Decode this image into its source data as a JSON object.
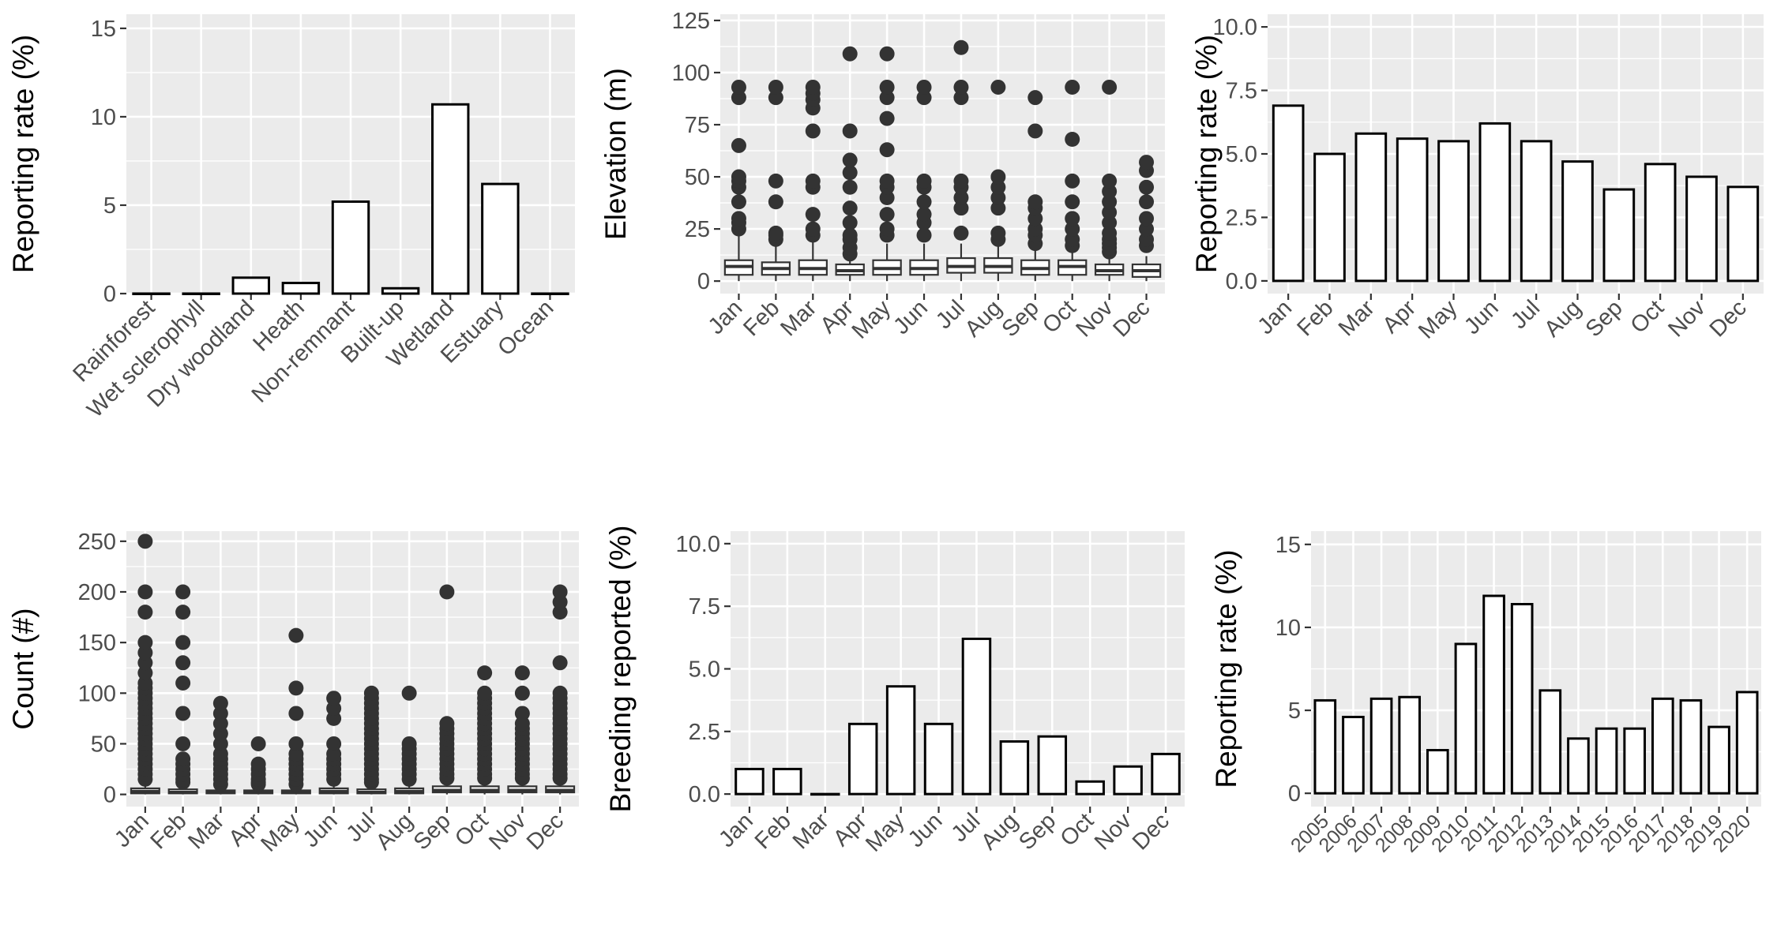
{
  "chart_data": [
    {
      "type": "bar",
      "ylabel": "Reporting rate (%)",
      "categories": [
        "Rainforest",
        "Wet sclerophyll",
        "Dry woodland",
        "Heath",
        "Non-remnant",
        "Built-up",
        "Wetland",
        "Estuary",
        "Ocean"
      ],
      "values": [
        0,
        0,
        0.9,
        0.6,
        5.2,
        0.3,
        10.7,
        6.2,
        0
      ],
      "ylim": [
        0,
        15.8
      ],
      "yticks": [
        "0",
        "5",
        "10",
        "15"
      ],
      "ytick_values": [
        0,
        5,
        10,
        15
      ],
      "grid": true
    },
    {
      "type": "box",
      "ylabel": "Elevation (m)",
      "categories": [
        "Jan",
        "Feb",
        "Mar",
        "Apr",
        "May",
        "Jun",
        "Jul",
        "Aug",
        "Sep",
        "Oct",
        "Nov",
        "Dec"
      ],
      "ylim": [
        -6,
        128
      ],
      "yticks": [
        "0",
        "25",
        "50",
        "75",
        "100",
        "125"
      ],
      "ytick_values": [
        0,
        25,
        50,
        75,
        100,
        125
      ],
      "grid": true,
      "boxes": [
        {
          "q1": 3,
          "median": 7,
          "q3": 10,
          "whisker_low": 0,
          "whisker_high": 22,
          "outliers": [
            25,
            28,
            30,
            38,
            45,
            48,
            50,
            65,
            88,
            93
          ]
        },
        {
          "q1": 3,
          "median": 6,
          "q3": 9,
          "whisker_low": 0,
          "whisker_high": 18,
          "outliers": [
            20,
            22,
            23,
            38,
            48,
            88,
            93
          ]
        },
        {
          "q1": 3,
          "median": 6,
          "q3": 10,
          "whisker_low": 0,
          "whisker_high": 20,
          "outliers": [
            22,
            25,
            32,
            45,
            48,
            72,
            83,
            87,
            90,
            93
          ]
        },
        {
          "q1": 3,
          "median": 5,
          "q3": 8,
          "whisker_low": 0,
          "whisker_high": 12,
          "outliers": [
            13,
            16,
            20,
            22,
            28,
            35,
            45,
            52,
            58,
            72,
            109
          ]
        },
        {
          "q1": 3,
          "median": 6,
          "q3": 10,
          "whisker_low": 0,
          "whisker_high": 18,
          "outliers": [
            22,
            25,
            32,
            40,
            45,
            48,
            63,
            78,
            88,
            93,
            109
          ]
        },
        {
          "q1": 3,
          "median": 6,
          "q3": 10,
          "whisker_low": 0,
          "whisker_high": 18,
          "outliers": [
            22,
            28,
            32,
            38,
            45,
            48,
            88,
            93
          ]
        },
        {
          "q1": 4,
          "median": 7,
          "q3": 11,
          "whisker_low": 0,
          "whisker_high": 18,
          "outliers": [
            23,
            35,
            40,
            45,
            48,
            88,
            93,
            112
          ]
        },
        {
          "q1": 4,
          "median": 7,
          "q3": 11,
          "whisker_low": 0,
          "whisker_high": 18,
          "outliers": [
            20,
            23,
            35,
            40,
            45,
            50,
            93
          ]
        },
        {
          "q1": 3,
          "median": 6,
          "q3": 10,
          "whisker_low": 0,
          "whisker_high": 15,
          "outliers": [
            18,
            22,
            25,
            30,
            35,
            38,
            72,
            88
          ]
        },
        {
          "q1": 3,
          "median": 7,
          "q3": 10,
          "whisker_low": 0,
          "whisker_high": 15,
          "outliers": [
            17,
            20,
            25,
            30,
            38,
            48,
            68,
            93
          ]
        },
        {
          "q1": 3,
          "median": 5,
          "q3": 8,
          "whisker_low": 0,
          "whisker_high": 12,
          "outliers": [
            14,
            16,
            18,
            20,
            23,
            28,
            33,
            38,
            43,
            48,
            93
          ]
        },
        {
          "q1": 2,
          "median": 5,
          "q3": 8,
          "whisker_low": 0,
          "whisker_high": 12,
          "outliers": [
            17,
            20,
            25,
            30,
            38,
            45,
            53,
            57
          ]
        }
      ]
    },
    {
      "type": "bar",
      "ylabel": "Reporting rate (%)",
      "categories": [
        "Jan",
        "Feb",
        "Mar",
        "Apr",
        "May",
        "Jun",
        "Jul",
        "Aug",
        "Sep",
        "Oct",
        "Nov",
        "Dec"
      ],
      "values": [
        6.9,
        5.0,
        5.8,
        5.6,
        5.5,
        6.2,
        5.5,
        4.7,
        3.6,
        4.6,
        4.1,
        3.7
      ],
      "ylim": [
        -0.5,
        10.5
      ],
      "yticks": [
        "0.0",
        "2.5",
        "5.0",
        "7.5",
        "10.0"
      ],
      "ytick_values": [
        0,
        2.5,
        5,
        7.5,
        10
      ],
      "grid": true
    },
    {
      "type": "box",
      "ylabel": "Count (#)",
      "categories": [
        "Jan",
        "Feb",
        "Mar",
        "Apr",
        "May",
        "Jun",
        "Jul",
        "Aug",
        "Sep",
        "Oct",
        "Nov",
        "Dec"
      ],
      "ylim": [
        -12,
        260
      ],
      "yticks": [
        "0",
        "50",
        "100",
        "150",
        "200",
        "250"
      ],
      "ytick_values": [
        0,
        50,
        100,
        150,
        200,
        250
      ],
      "grid": true,
      "boxes": [
        {
          "q1": 1,
          "median": 3,
          "q3": 6,
          "whisker_low": 0,
          "whisker_high": 12,
          "outliers": [
            15,
            20,
            25,
            30,
            35,
            40,
            45,
            50,
            55,
            60,
            65,
            70,
            75,
            80,
            85,
            90,
            95,
            100,
            105,
            110,
            120,
            130,
            140,
            150,
            180,
            200,
            250
          ]
        },
        {
          "q1": 1,
          "median": 2,
          "q3": 5,
          "whisker_low": 0,
          "whisker_high": 10,
          "outliers": [
            12,
            15,
            20,
            25,
            30,
            35,
            50,
            80,
            110,
            130,
            150,
            180,
            200
          ]
        },
        {
          "q1": 1,
          "median": 2,
          "q3": 4,
          "whisker_low": 0,
          "whisker_high": 8,
          "outliers": [
            10,
            15,
            20,
            25,
            30,
            35,
            40,
            50,
            60,
            70,
            80,
            90
          ]
        },
        {
          "q1": 1,
          "median": 2,
          "q3": 4,
          "whisker_low": 0,
          "whisker_high": 8,
          "outliers": [
            10,
            12,
            15,
            20,
            25,
            30,
            50
          ]
        },
        {
          "q1": 1,
          "median": 2,
          "q3": 4,
          "whisker_low": 0,
          "whisker_high": 8,
          "outliers": [
            10,
            15,
            20,
            25,
            30,
            35,
            40,
            50,
            80,
            105,
            157
          ]
        },
        {
          "q1": 1,
          "median": 3,
          "q3": 6,
          "whisker_low": 0,
          "whisker_high": 12,
          "outliers": [
            15,
            20,
            25,
            30,
            35,
            40,
            50,
            75,
            85,
            95
          ]
        },
        {
          "q1": 1,
          "median": 2,
          "q3": 5,
          "whisker_low": 0,
          "whisker_high": 10,
          "outliers": [
            12,
            15,
            20,
            25,
            30,
            35,
            40,
            45,
            50,
            55,
            60,
            65,
            70,
            75,
            80,
            85,
            90,
            95,
            100
          ]
        },
        {
          "q1": 1,
          "median": 3,
          "q3": 6,
          "whisker_low": 0,
          "whisker_high": 12,
          "outliers": [
            15,
            20,
            25,
            30,
            35,
            40,
            45,
            50,
            100
          ]
        },
        {
          "q1": 2,
          "median": 4,
          "q3": 8,
          "whisker_low": 0,
          "whisker_high": 14,
          "outliers": [
            16,
            20,
            25,
            30,
            35,
            40,
            45,
            50,
            55,
            60,
            65,
            70,
            200
          ]
        },
        {
          "q1": 2,
          "median": 4,
          "q3": 8,
          "whisker_low": 0,
          "whisker_high": 14,
          "outliers": [
            16,
            20,
            25,
            30,
            35,
            40,
            45,
            50,
            55,
            60,
            65,
            70,
            75,
            80,
            85,
            90,
            95,
            100,
            120
          ]
        },
        {
          "q1": 2,
          "median": 4,
          "q3": 8,
          "whisker_low": 0,
          "whisker_high": 14,
          "outliers": [
            16,
            20,
            25,
            30,
            35,
            40,
            45,
            50,
            55,
            60,
            65,
            70,
            80,
            100,
            120
          ]
        },
        {
          "q1": 2,
          "median": 4,
          "q3": 8,
          "whisker_low": 0,
          "whisker_high": 14,
          "outliers": [
            16,
            20,
            25,
            30,
            35,
            40,
            45,
            50,
            55,
            60,
            65,
            70,
            75,
            80,
            85,
            90,
            95,
            100,
            130,
            180,
            190,
            200
          ]
        }
      ]
    },
    {
      "type": "bar",
      "ylabel": "Breeding reported (%)",
      "categories": [
        "Jan",
        "Feb",
        "Mar",
        "Apr",
        "May",
        "Jun",
        "Jul",
        "Aug",
        "Sep",
        "Oct",
        "Nov",
        "Dec"
      ],
      "values": [
        1.0,
        1.0,
        0,
        2.8,
        4.3,
        2.8,
        6.2,
        2.1,
        2.3,
        0.5,
        1.1,
        1.6
      ],
      "ylim": [
        -0.5,
        10.5
      ],
      "yticks": [
        "0.0",
        "2.5",
        "5.0",
        "7.5",
        "10.0"
      ],
      "ytick_values": [
        0,
        2.5,
        5,
        7.5,
        10
      ],
      "grid": true
    },
    {
      "type": "bar",
      "ylabel": "Reporting rate (%)",
      "categories": [
        "2005",
        "2006",
        "2007",
        "2008",
        "2009",
        "2010",
        "2011",
        "2012",
        "2013",
        "2014",
        "2015",
        "2016",
        "2017",
        "2018",
        "2019",
        "2020"
      ],
      "values": [
        5.6,
        4.6,
        5.7,
        5.8,
        2.6,
        9.0,
        11.9,
        11.4,
        6.2,
        3.3,
        3.9,
        3.9,
        5.7,
        5.6,
        4.0,
        6.1
      ],
      "ylim": [
        -0.8,
        15.8
      ],
      "yticks": [
        "0",
        "5",
        "10",
        "15"
      ],
      "ytick_values": [
        0,
        5,
        10,
        15
      ],
      "grid": true
    }
  ]
}
